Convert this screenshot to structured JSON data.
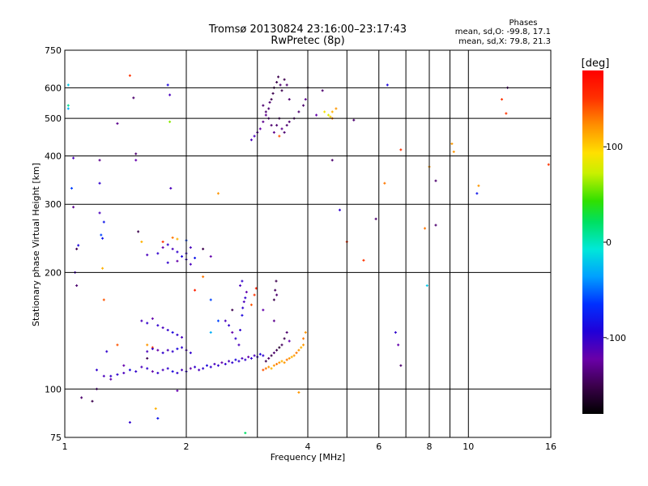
{
  "chart_data": {
    "type": "scatter",
    "title": "Tromsø 20130824 23:16:00–23:17:43",
    "subtitle": "RwPretec (8p)",
    "xlabel": "Frequency [MHz]",
    "ylabel": "Stationary phase Virtual Height [km]",
    "x_scale": "log",
    "y_scale": "log",
    "xlim": [
      1,
      16
    ],
    "ylim": [
      75,
      750
    ],
    "x_ticks": [
      1,
      2,
      4,
      6,
      8,
      10,
      16
    ],
    "x_tick_labels": [
      "1",
      "2",
      "4",
      "6",
      "8",
      "10",
      "16"
    ],
    "x_minor_gridlines": [
      3,
      5,
      7,
      9
    ],
    "y_ticks": [
      75,
      100,
      200,
      300,
      400,
      500,
      600,
      750
    ],
    "y_tick_labels": [
      "75",
      "100",
      "200",
      "300",
      "400",
      "500",
      "600",
      "750"
    ],
    "grid": true,
    "stats": {
      "heading": "Phases",
      "line1": "mean, sd,O: -99.8, 17.1",
      "line2": "mean, sd,X:  79.8, 21.3"
    },
    "colorbar": {
      "label": "[deg]",
      "range": [
        -180,
        180
      ],
      "ticks": [
        100,
        0,
        -100
      ],
      "tick_labels": [
        "100",
        "0",
        "-100"
      ]
    },
    "points": [
      [
        1.02,
        610,
        -20
      ],
      [
        1.02,
        540,
        10
      ],
      [
        1.02,
        530,
        -30
      ],
      [
        1.05,
        395,
        -110
      ],
      [
        1.04,
        330,
        -60
      ],
      [
        1.05,
        295,
        -130
      ],
      [
        1.07,
        230,
        -150
      ],
      [
        1.08,
        235,
        -90
      ],
      [
        1.06,
        200,
        -110
      ],
      [
        1.07,
        185,
        -140
      ],
      [
        1.1,
        95,
        -140
      ],
      [
        1.17,
        93,
        -150
      ],
      [
        1.2,
        100,
        -130
      ],
      [
        1.22,
        390,
        -130
      ],
      [
        1.22,
        340,
        -100
      ],
      [
        1.22,
        285,
        -110
      ],
      [
        1.25,
        270,
        -80
      ],
      [
        1.23,
        250,
        -60
      ],
      [
        1.24,
        245,
        -80
      ],
      [
        1.24,
        205,
        110
      ],
      [
        1.25,
        170,
        140
      ],
      [
        1.27,
        125,
        -100
      ],
      [
        1.3,
        108,
        -100
      ],
      [
        1.35,
        130,
        140
      ],
      [
        1.35,
        485,
        -130
      ],
      [
        1.4,
        115,
        -120
      ],
      [
        1.45,
        82,
        -100
      ],
      [
        1.45,
        645,
        150
      ],
      [
        1.48,
        565,
        -140
      ],
      [
        1.5,
        390,
        -120
      ],
      [
        1.5,
        405,
        -140
      ],
      [
        1.52,
        255,
        -150
      ],
      [
        1.55,
        240,
        110
      ],
      [
        1.6,
        120,
        -150
      ],
      [
        1.6,
        130,
        120
      ],
      [
        1.65,
        128,
        150
      ],
      [
        1.68,
        89,
        110
      ],
      [
        1.7,
        84,
        -80
      ],
      [
        1.8,
        610,
        -90
      ],
      [
        1.82,
        575,
        -110
      ],
      [
        1.82,
        490,
        60
      ],
      [
        1.83,
        330,
        -110
      ],
      [
        1.2,
        112,
        -100
      ],
      [
        1.25,
        108,
        -110
      ],
      [
        1.3,
        106,
        -120
      ],
      [
        1.35,
        109,
        -100
      ],
      [
        1.4,
        110,
        -110
      ],
      [
        1.45,
        112,
        -90
      ],
      [
        1.5,
        111,
        -100
      ],
      [
        1.55,
        114,
        -110
      ],
      [
        1.6,
        113,
        -100
      ],
      [
        1.65,
        111,
        -120
      ],
      [
        1.7,
        110,
        -100
      ],
      [
        1.75,
        112,
        -110
      ],
      [
        1.8,
        113,
        -100
      ],
      [
        1.85,
        111,
        -90
      ],
      [
        1.9,
        110,
        -100
      ],
      [
        1.95,
        112,
        -110
      ],
      [
        2.0,
        111,
        -100
      ],
      [
        2.05,
        113,
        -120
      ],
      [
        2.1,
        114,
        -100
      ],
      [
        2.15,
        112,
        -110
      ],
      [
        2.2,
        113,
        -100
      ],
      [
        2.25,
        115,
        -90
      ],
      [
        2.3,
        114,
        -100
      ],
      [
        2.35,
        116,
        -110
      ],
      [
        2.4,
        115,
        -100
      ],
      [
        2.45,
        117,
        -120
      ],
      [
        2.5,
        116,
        -100
      ],
      [
        2.55,
        118,
        -110
      ],
      [
        2.6,
        117,
        -100
      ],
      [
        2.65,
        119,
        -90
      ],
      [
        2.7,
        118,
        -100
      ],
      [
        2.75,
        120,
        -110
      ],
      [
        2.8,
        119,
        -100
      ],
      [
        2.85,
        121,
        -120
      ],
      [
        2.9,
        120,
        -100
      ],
      [
        2.95,
        122,
        -110
      ],
      [
        3.0,
        121,
        -100
      ],
      [
        3.05,
        123,
        -90
      ],
      [
        3.1,
        122,
        -100
      ],
      [
        1.6,
        125,
        -110
      ],
      [
        1.65,
        127,
        -100
      ],
      [
        1.7,
        126,
        -120
      ],
      [
        1.75,
        124,
        -100
      ],
      [
        1.8,
        126,
        -110
      ],
      [
        1.85,
        125,
        -100
      ],
      [
        1.9,
        127,
        -90
      ],
      [
        1.95,
        128,
        -100
      ],
      [
        2.0,
        126,
        -110
      ],
      [
        2.05,
        124,
        -100
      ],
      [
        1.55,
        150,
        -110
      ],
      [
        1.6,
        148,
        -100
      ],
      [
        1.65,
        152,
        -120
      ],
      [
        1.7,
        146,
        -100
      ],
      [
        1.75,
        144,
        -110
      ],
      [
        1.8,
        142,
        -100
      ],
      [
        1.85,
        140,
        -90
      ],
      [
        1.9,
        138,
        -100
      ],
      [
        1.95,
        136,
        -110
      ],
      [
        1.6,
        222,
        -110
      ],
      [
        1.7,
        224,
        -100
      ],
      [
        1.75,
        232,
        -120
      ],
      [
        1.8,
        236,
        -100
      ],
      [
        1.85,
        230,
        -110
      ],
      [
        1.9,
        226,
        -100
      ],
      [
        1.95,
        220,
        -90
      ],
      [
        2.0,
        224,
        -100
      ],
      [
        2.05,
        232,
        -110
      ],
      [
        1.8,
        212,
        -100
      ],
      [
        1.9,
        214,
        -120
      ],
      [
        2.0,
        216,
        -100
      ],
      [
        2.05,
        210,
        -110
      ],
      [
        1.85,
        246,
        130
      ],
      [
        1.9,
        244,
        110
      ],
      [
        1.75,
        240,
        150
      ],
      [
        2.0,
        242,
        -60
      ],
      [
        2.1,
        218,
        -80
      ],
      [
        2.2,
        230,
        -150
      ],
      [
        2.3,
        220,
        -120
      ],
      [
        2.2,
        195,
        130
      ],
      [
        2.1,
        180,
        160
      ],
      [
        2.3,
        170,
        -60
      ],
      [
        2.5,
        150,
        -110
      ],
      [
        2.55,
        146,
        -100
      ],
      [
        2.6,
        140,
        -120
      ],
      [
        2.65,
        135,
        -100
      ],
      [
        2.7,
        130,
        -110
      ],
      [
        2.72,
        142,
        -100
      ],
      [
        2.75,
        155,
        -90
      ],
      [
        2.76,
        162,
        -100
      ],
      [
        2.78,
        168,
        -110
      ],
      [
        2.8,
        172,
        -100
      ],
      [
        2.82,
        178,
        -120
      ],
      [
        2.72,
        185,
        -110
      ],
      [
        2.75,
        190,
        -100
      ],
      [
        2.9,
        165,
        140
      ],
      [
        2.95,
        175,
        150
      ],
      [
        2.98,
        182,
        160
      ],
      [
        2.6,
        160,
        -150
      ],
      [
        2.4,
        150,
        -60
      ],
      [
        2.3,
        140,
        -30
      ],
      [
        3.1,
        112,
        140
      ],
      [
        3.15,
        113,
        130
      ],
      [
        3.2,
        114,
        120
      ],
      [
        3.25,
        113,
        110
      ],
      [
        3.3,
        115,
        120
      ],
      [
        3.35,
        116,
        130
      ],
      [
        3.4,
        117,
        120
      ],
      [
        3.45,
        118,
        110
      ],
      [
        3.5,
        117,
        120
      ],
      [
        3.55,
        119,
        130
      ],
      [
        3.6,
        120,
        120
      ],
      [
        3.65,
        121,
        110
      ],
      [
        3.7,
        122,
        120
      ],
      [
        3.75,
        124,
        130
      ],
      [
        3.8,
        126,
        120
      ],
      [
        3.85,
        128,
        110
      ],
      [
        3.9,
        130,
        120
      ],
      [
        3.9,
        135,
        130
      ],
      [
        3.95,
        140,
        120
      ],
      [
        3.15,
        118,
        -150
      ],
      [
        3.2,
        120,
        -140
      ],
      [
        3.25,
        122,
        -150
      ],
      [
        3.3,
        124,
        -140
      ],
      [
        3.35,
        126,
        -150
      ],
      [
        3.4,
        128,
        -160
      ],
      [
        3.3,
        170,
        -150
      ],
      [
        3.32,
        180,
        -145
      ],
      [
        3.34,
        190,
        -150
      ],
      [
        3.35,
        175,
        -140
      ],
      [
        3.45,
        130,
        -145
      ],
      [
        3.5,
        135,
        -150
      ],
      [
        3.55,
        140,
        -140
      ],
      [
        3.6,
        133,
        -120
      ],
      [
        3.3,
        150,
        -130
      ],
      [
        3.1,
        160,
        -120
      ],
      [
        2.9,
        440,
        -110
      ],
      [
        2.95,
        450,
        -110
      ],
      [
        3.0,
        460,
        -120
      ],
      [
        3.05,
        470,
        -120
      ],
      [
        3.1,
        490,
        -130
      ],
      [
        3.15,
        510,
        -130
      ],
      [
        3.2,
        530,
        -140
      ],
      [
        3.22,
        550,
        -140
      ],
      [
        3.25,
        560,
        -150
      ],
      [
        3.28,
        580,
        -150
      ],
      [
        3.3,
        600,
        -150
      ],
      [
        3.35,
        620,
        -150
      ],
      [
        3.38,
        640,
        -150
      ],
      [
        3.42,
        610,
        -140
      ],
      [
        3.45,
        590,
        -150
      ],
      [
        3.5,
        630,
        -150
      ],
      [
        3.55,
        610,
        -140
      ],
      [
        3.6,
        560,
        -140
      ],
      [
        3.1,
        540,
        -140
      ],
      [
        3.15,
        520,
        -140
      ],
      [
        3.2,
        500,
        -130
      ],
      [
        3.25,
        480,
        -140
      ],
      [
        3.3,
        460,
        -130
      ],
      [
        3.35,
        480,
        -140
      ],
      [
        3.4,
        500,
        -140
      ],
      [
        3.45,
        470,
        -130
      ],
      [
        3.5,
        460,
        -140
      ],
      [
        3.55,
        480,
        -140
      ],
      [
        3.6,
        490,
        -140
      ],
      [
        3.7,
        500,
        -140
      ],
      [
        3.8,
        520,
        -140
      ],
      [
        3.9,
        540,
        -140
      ],
      [
        4.0,
        600,
        -150
      ],
      [
        3.95,
        560,
        -130
      ],
      [
        3.4,
        450,
        140
      ],
      [
        4.2,
        510,
        -120
      ],
      [
        4.35,
        590,
        -140
      ],
      [
        4.4,
        520,
        90
      ],
      [
        4.5,
        510,
        80
      ],
      [
        4.55,
        505,
        100
      ],
      [
        4.6,
        520,
        110
      ],
      [
        4.7,
        530,
        120
      ],
      [
        4.6,
        500,
        130
      ],
      [
        4.6,
        390,
        -140
      ],
      [
        4.8,
        290,
        -100
      ],
      [
        5.0,
        240,
        150
      ],
      [
        5.2,
        495,
        -140
      ],
      [
        5.5,
        215,
        150
      ],
      [
        5.9,
        275,
        -140
      ],
      [
        6.2,
        340,
        130
      ],
      [
        6.3,
        610,
        -90
      ],
      [
        6.6,
        140,
        -100
      ],
      [
        6.7,
        130,
        -120
      ],
      [
        6.8,
        115,
        -140
      ],
      [
        6.8,
        415,
        150
      ],
      [
        7.8,
        260,
        130
      ],
      [
        7.9,
        185,
        -20
      ],
      [
        8.0,
        375,
        120
      ],
      [
        8.3,
        345,
        -140
      ],
      [
        8.3,
        265,
        -140
      ],
      [
        9.1,
        430,
        120
      ],
      [
        9.2,
        410,
        120
      ],
      [
        10.5,
        320,
        -80
      ],
      [
        10.6,
        335,
        120
      ],
      [
        12.1,
        560,
        150
      ],
      [
        12.5,
        600,
        -140
      ],
      [
        12.4,
        515,
        150
      ],
      [
        15.8,
        380,
        150
      ],
      [
        1.9,
        99,
        -120
      ],
      [
        2.4,
        320,
        120
      ],
      [
        2.8,
        77,
        20
      ],
      [
        3.8,
        98,
        120
      ]
    ]
  }
}
